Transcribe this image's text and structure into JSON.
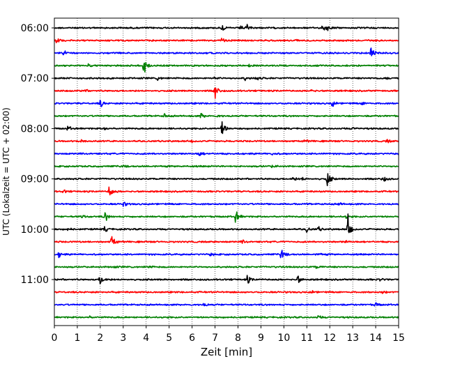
{
  "chart_data": {
    "type": "line",
    "title": "",
    "xlabel": "Zeit  [min]",
    "ylabel": "UTC (Lokalzeit = UTC + 02:00)",
    "xlim": [
      0,
      15
    ],
    "x_ticks": [
      "0",
      "1",
      "2",
      "3",
      "4",
      "5",
      "6",
      "7",
      "8",
      "9",
      "10",
      "11",
      "12",
      "13",
      "14",
      "15"
    ],
    "y_tick_labels": [
      "06:00",
      "07:00",
      "08:00",
      "09:00",
      "10:00",
      "11:00"
    ],
    "grid": "vertical dotted lines at each minute",
    "legend": "none",
    "row_minutes": 15,
    "row_color_cycle": [
      "#000000",
      "#ff0000",
      "#0000ff",
      "#008000"
    ],
    "rows": [
      {
        "time": "06:00",
        "events": [
          [
            7.3,
            0.6
          ],
          [
            8.1,
            0.5
          ],
          [
            8.4,
            0.5
          ],
          [
            11.7,
            0.8
          ],
          [
            11.9,
            0.4
          ]
        ]
      },
      {
        "time": "06:15",
        "events": [
          [
            0.1,
            0.5
          ],
          [
            7.3,
            0.5
          ],
          [
            10.5,
            0.3
          ],
          [
            13.5,
            0.3
          ]
        ]
      },
      {
        "time": "06:30",
        "events": [
          [
            0.4,
            0.6
          ],
          [
            13.8,
            1.3
          ]
        ]
      },
      {
        "time": "06:45",
        "events": [
          [
            3.9,
            2.0
          ],
          [
            1.5,
            0.3
          ],
          [
            8.5,
            0.3
          ]
        ]
      },
      {
        "time": "07:00",
        "events": [
          [
            4.5,
            0.4
          ],
          [
            7.0,
            0.3
          ],
          [
            8.3,
            0.4
          ],
          [
            8.8,
            0.4
          ],
          [
            14.4,
            0.3
          ]
        ]
      },
      {
        "time": "07:15",
        "events": [
          [
            7.0,
            1.8
          ],
          [
            1.3,
            0.3
          ],
          [
            11.2,
            0.3
          ]
        ]
      },
      {
        "time": "07:30",
        "events": [
          [
            2.0,
            0.9
          ],
          [
            12.1,
            0.7
          ],
          [
            13.4,
            0.3
          ]
        ]
      },
      {
        "time": "07:45",
        "events": [
          [
            4.8,
            0.4
          ],
          [
            6.4,
            0.6
          ],
          [
            7.1,
            0.3
          ]
        ]
      },
      {
        "time": "08:00",
        "events": [
          [
            0.6,
            0.5
          ],
          [
            7.3,
            2.0
          ],
          [
            2.2,
            0.3
          ],
          [
            13.0,
            0.3
          ]
        ]
      },
      {
        "time": "08:15",
        "events": [
          [
            1.2,
            0.4
          ],
          [
            6.0,
            0.3
          ],
          [
            10.9,
            0.3
          ],
          [
            14.5,
            0.3
          ]
        ]
      },
      {
        "time": "08:30",
        "events": [
          [
            6.3,
            0.6
          ],
          [
            9.5,
            0.3
          ]
        ]
      },
      {
        "time": "08:45",
        "events": [
          [
            3.0,
            0.3
          ],
          [
            9.5,
            0.3
          ]
        ]
      },
      {
        "time": "09:00",
        "events": [
          [
            11.9,
            1.7
          ],
          [
            14.3,
            0.9
          ],
          [
            10.4,
            0.4
          ],
          [
            10.8,
            0.3
          ]
        ]
      },
      {
        "time": "09:15",
        "events": [
          [
            2.4,
            1.5
          ],
          [
            0.4,
            0.3
          ]
        ]
      },
      {
        "time": "09:30",
        "events": [
          [
            3.0,
            0.5
          ],
          [
            12.4,
            0.3
          ]
        ]
      },
      {
        "time": "09:45",
        "events": [
          [
            2.2,
            1.1
          ],
          [
            7.9,
            1.5
          ],
          [
            1.2,
            0.3
          ],
          [
            12.7,
            0.3
          ]
        ]
      },
      {
        "time": "10:00",
        "events": [
          [
            12.8,
            3.0
          ],
          [
            2.2,
            0.6
          ],
          [
            11.0,
            0.5
          ],
          [
            11.5,
            0.5
          ],
          [
            0.6,
            0.3
          ]
        ]
      },
      {
        "time": "10:15",
        "events": [
          [
            2.5,
            1.5
          ],
          [
            8.2,
            0.3
          ],
          [
            12.7,
            0.3
          ]
        ]
      },
      {
        "time": "10:30",
        "events": [
          [
            9.9,
            1.4
          ],
          [
            0.2,
            0.6
          ],
          [
            6.8,
            0.3
          ],
          [
            11.5,
            0.3
          ]
        ]
      },
      {
        "time": "10:45",
        "events": [
          [
            2.5,
            0.4
          ],
          [
            4.1,
            0.3
          ],
          [
            11.4,
            0.3
          ]
        ]
      },
      {
        "time": "11:00",
        "events": [
          [
            2.0,
            1.6
          ],
          [
            8.4,
            1.0
          ],
          [
            10.6,
            0.9
          ],
          [
            14.2,
            0.3
          ]
        ]
      },
      {
        "time": "11:15",
        "events": [
          [
            11.2,
            0.3
          ],
          [
            14.3,
            0.3
          ]
        ]
      },
      {
        "time": "11:30",
        "events": [
          [
            6.5,
            0.3
          ],
          [
            14.0,
            0.4
          ]
        ]
      },
      {
        "time": "11:45",
        "events": [
          [
            11.5,
            0.3
          ],
          [
            1.5,
            0.2
          ]
        ]
      }
    ]
  }
}
